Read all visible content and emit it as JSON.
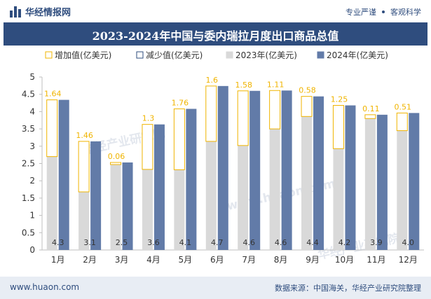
{
  "header": {
    "brand": "华经情报网",
    "tag1": "专业严谨",
    "tag2": "客观科学"
  },
  "footer": {
    "website": "www.huaon.com",
    "source": "数据来源：中国海关，华经产业研究院整理"
  },
  "watermarks": [
    "华经产业研究院",
    "www.huaon.com"
  ],
  "colors": {
    "brand": "#2f4d7e",
    "increase_border": "#f0b400",
    "decrease_border": "#2f4d7e",
    "bar2023": "#d9d9d9",
    "bar2024": "#627ba8",
    "label_increase": "#f0b400",
    "label_bottom": "#333333"
  },
  "chart_data": {
    "type": "bar",
    "title": "2023-2024年中国与委内瑞拉月度出口商品总值",
    "categories": [
      "1月",
      "2月",
      "3月",
      "4月",
      "5月",
      "6月",
      "7月",
      "8月",
      "9月",
      "10月",
      "11月",
      "12月"
    ],
    "series": [
      {
        "name": "增加值(亿美元)",
        "values": [
          1.64,
          1.46,
          0.06,
          1.3,
          1.76,
          1.6,
          1.58,
          1.11,
          0.58,
          1.25,
          0.11,
          0.51
        ]
      },
      {
        "name": "减少值(亿美元)",
        "values": [
          0,
          0,
          0,
          0,
          0,
          0,
          0,
          0,
          0,
          0,
          0,
          0
        ]
      },
      {
        "name": "2023年(亿美元)",
        "values": [
          2.7,
          1.68,
          2.47,
          2.33,
          2.32,
          3.14,
          3.02,
          3.5,
          3.86,
          2.93,
          3.8,
          3.45
        ]
      },
      {
        "name": "2024年(亿美元)",
        "values": [
          4.34,
          3.14,
          2.53,
          3.63,
          4.08,
          4.74,
          4.6,
          4.61,
          4.44,
          4.18,
          3.91,
          3.96
        ]
      }
    ],
    "increase_labels": [
      "1.64",
      "1.46",
      "0.06",
      "1.3",
      "1.76",
      "1.6",
      "1.58",
      "1.11",
      "0.58",
      "1.25",
      "0.11",
      "0.51"
    ],
    "bottom_labels": [
      "4.3",
      "3.1",
      "2.5",
      "3.6",
      "4.1",
      "4.7",
      "4.6",
      "4.6",
      "4.4",
      "4.2",
      "3.9",
      "4.0"
    ],
    "ylim": [
      0,
      5
    ],
    "yticks": [
      "0",
      "0.5",
      "1",
      "1.5",
      "2",
      "2.5",
      "3",
      "3.5",
      "4",
      "4.5",
      "5"
    ],
    "legend_position": "top",
    "grid": false
  }
}
